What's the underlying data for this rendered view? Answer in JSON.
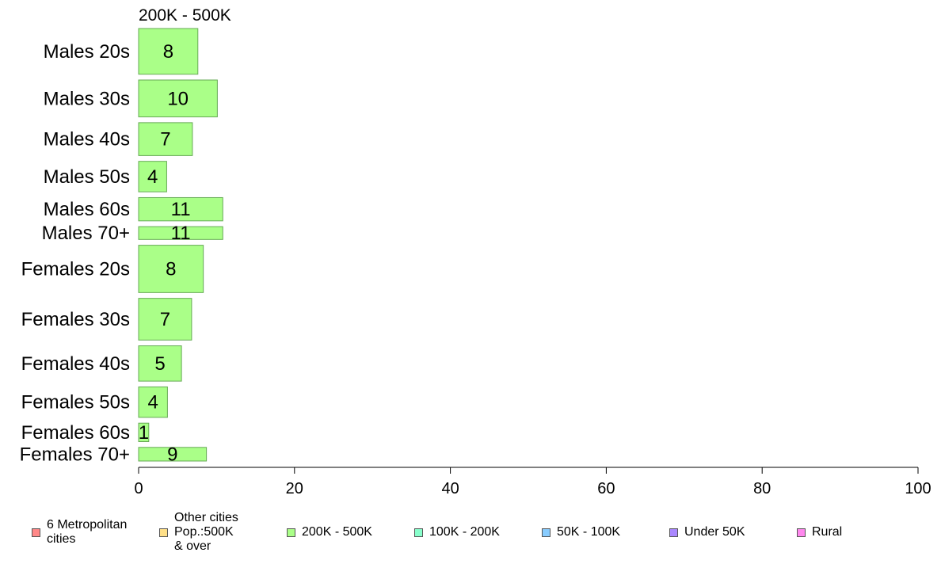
{
  "chart_data": {
    "type": "bar",
    "orientation": "horizontal",
    "title": "200K - 500K",
    "categories": [
      "Males 20s",
      "Males 30s",
      "Males 40s",
      "Males 50s",
      "Males 60s",
      "Males 70+",
      "Females 20s",
      "Females 30s",
      "Females 40s",
      "Females 50s",
      "Females 60s",
      "Females 70+"
    ],
    "values": [
      8,
      10,
      7,
      4,
      11,
      11,
      8,
      7,
      5,
      4,
      1,
      9
    ],
    "bar_values": [
      7.6,
      10.1,
      6.9,
      3.6,
      10.8,
      10.8,
      8.3,
      6.8,
      5.5,
      3.7,
      1.3,
      8.7
    ],
    "bar_weights": [
      57,
      46,
      41,
      38,
      29,
      16,
      59,
      52,
      44,
      38,
      23,
      17
    ],
    "xlim": [
      0,
      100
    ],
    "xticks": [
      0,
      20,
      40,
      60,
      80,
      100
    ],
    "grid": false,
    "bar_color": "#aaff88",
    "bar_edge_color": "#66aa55",
    "legend_placement": "bottom"
  },
  "legend": [
    {
      "label": "6 Metropolitan\n cities",
      "color": "#ff8888"
    },
    {
      "label": "Other cities\nPop.:500K\n & over",
      "color": "#ffe088"
    },
    {
      "label": "200K - 500K",
      "color": "#aaff88"
    },
    {
      "label": "100K - 200K",
      "color": "#88ffcc"
    },
    {
      "label": "50K - 100K",
      "color": "#88ccff"
    },
    {
      "label": "Under 50K",
      "color": "#aa88ff"
    },
    {
      "label": "Rural",
      "color": "#ff88ee"
    }
  ]
}
